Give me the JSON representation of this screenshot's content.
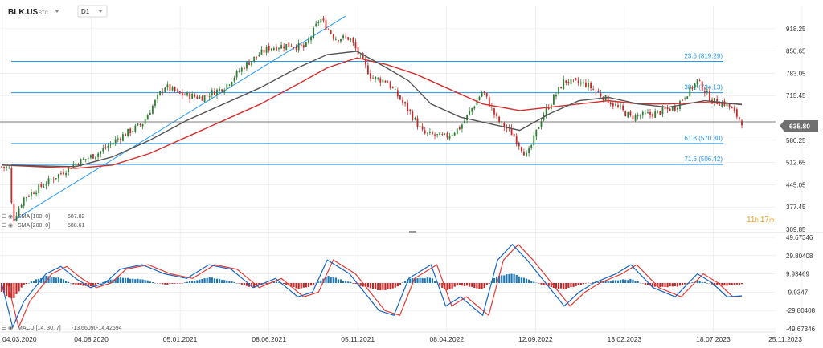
{
  "header": {
    "symbol": "BLK.US",
    "subtitle": "STC",
    "interval": "D1"
  },
  "colors": {
    "up": "#2e7d32",
    "down": "#c62828",
    "sma100": "#555555",
    "sma200": "#d32f2f",
    "fib": "#2196f3",
    "trend": "#2196f3",
    "macd_pos": "#1f77b4",
    "macd_neg": "#c62828",
    "macd_line": "#1565c0",
    "signal_line": "#e53935",
    "price_line": "#555555",
    "price_badge": "#707070",
    "countdown": "#f0a020",
    "grid": "#e6e6e6"
  },
  "countdown": {
    "hours": "11",
    "h": "h",
    "minutes": "17",
    "m": "m"
  },
  "chart_data": [
    {
      "type": "candlestick",
      "title": "BLK.US",
      "interval": "D1",
      "xlabel": "",
      "ylabel": "",
      "ylim": [
        309.85,
        986.05
      ],
      "yticks": [
        "918.25",
        "850.65",
        "783.05",
        "715.45",
        "580.25",
        "512.65",
        "445.05",
        "377.45",
        "309.85"
      ],
      "xticks": [
        "04.03.2020",
        "04.08.2020",
        "05.01.2021",
        "08.06.2021",
        "05.11.2021",
        "08.04.2022",
        "12.09.2022",
        "13.02.2023",
        "18.07.2023",
        "25.11.2023"
      ],
      "current_price": {
        "label": "635.80",
        "value": 635.8
      },
      "price_path": [
        [
          0.0,
          500
        ],
        [
          0.01,
          495
        ],
        [
          0.015,
          335
        ],
        [
          0.03,
          405
        ],
        [
          0.06,
          450
        ],
        [
          0.1,
          510
        ],
        [
          0.13,
          540
        ],
        [
          0.16,
          590
        ],
        [
          0.19,
          630
        ],
        [
          0.22,
          745
        ],
        [
          0.24,
          720
        ],
        [
          0.27,
          710
        ],
        [
          0.3,
          740
        ],
        [
          0.33,
          810
        ],
        [
          0.36,
          860
        ],
        [
          0.39,
          870
        ],
        [
          0.41,
          860
        ],
        [
          0.43,
          950
        ],
        [
          0.45,
          890
        ],
        [
          0.47,
          890
        ],
        [
          0.5,
          770
        ],
        [
          0.52,
          760
        ],
        [
          0.55,
          670
        ],
        [
          0.57,
          600
        ],
        [
          0.6,
          590
        ],
        [
          0.62,
          620
        ],
        [
          0.65,
          730
        ],
        [
          0.67,
          640
        ],
        [
          0.69,
          600
        ],
        [
          0.71,
          530
        ],
        [
          0.73,
          650
        ],
        [
          0.76,
          760
        ],
        [
          0.79,
          750
        ],
        [
          0.82,
          700
        ],
        [
          0.85,
          650
        ],
        [
          0.88,
          660
        ],
        [
          0.91,
          680
        ],
        [
          0.94,
          760
        ],
        [
          0.96,
          700
        ],
        [
          0.98,
          690
        ],
        [
          1.0,
          635.8
        ]
      ],
      "sma": [
        {
          "name": "SMA [100, 0]",
          "value": "687.82",
          "points": [
            [
              0.0,
              505
            ],
            [
              0.1,
              500
            ],
            [
              0.15,
              530
            ],
            [
              0.2,
              580
            ],
            [
              0.25,
              640
            ],
            [
              0.3,
              690
            ],
            [
              0.35,
              740
            ],
            [
              0.4,
              800
            ],
            [
              0.44,
              840
            ],
            [
              0.48,
              850
            ],
            [
              0.52,
              800
            ],
            [
              0.55,
              760
            ],
            [
              0.58,
              690
            ],
            [
              0.62,
              650
            ],
            [
              0.66,
              630
            ],
            [
              0.7,
              610
            ],
            [
              0.74,
              660
            ],
            [
              0.78,
              700
            ],
            [
              0.82,
              710
            ],
            [
              0.86,
              690
            ],
            [
              0.9,
              680
            ],
            [
              0.95,
              700
            ],
            [
              1.0,
              688
            ]
          ]
        },
        {
          "name": "SMA [200, 0]",
          "value": "688.61",
          "points": [
            [
              0.0,
              505
            ],
            [
              0.1,
              495
            ],
            [
              0.15,
              505
            ],
            [
              0.2,
              540
            ],
            [
              0.25,
              590
            ],
            [
              0.3,
              640
            ],
            [
              0.35,
              690
            ],
            [
              0.4,
              750
            ],
            [
              0.44,
              800
            ],
            [
              0.48,
              830
            ],
            [
              0.52,
              810
            ],
            [
              0.56,
              780
            ],
            [
              0.6,
              740
            ],
            [
              0.65,
              690
            ],
            [
              0.7,
              670
            ],
            [
              0.74,
              680
            ],
            [
              0.78,
              690
            ],
            [
              0.82,
              700
            ],
            [
              0.86,
              690
            ],
            [
              0.9,
              690
            ],
            [
              0.95,
              695
            ],
            [
              1.0,
              689
            ]
          ]
        }
      ],
      "fibonacci": [
        {
          "label": "23.6 (819.29)",
          "value": 819.29
        },
        {
          "label": "38.2 (724.13)",
          "value": 724.13
        },
        {
          "label": "61.8 (570.30)",
          "value": 570.3
        },
        {
          "label": "71.6 (506.42)",
          "value": 506.42
        }
      ],
      "trendline": {
        "from": [
          0.015,
          335
        ],
        "to": [
          0.465,
          957
        ]
      }
    },
    {
      "type": "histogram",
      "title": "MACD [14, 30, 7]",
      "ylim": [
        -49.67346,
        49.67346
      ],
      "yticks": [
        "49.67346",
        "29.80408",
        "9.93469",
        "-9.9347",
        "-29.80408",
        "-49.67346"
      ],
      "macd_value": "-13.66090",
      "signal_value": "-14.42594",
      "macd_line": [
        [
          0.0,
          0
        ],
        [
          0.015,
          -48
        ],
        [
          0.03,
          -20
        ],
        [
          0.06,
          10
        ],
        [
          0.08,
          18
        ],
        [
          0.1,
          5
        ],
        [
          0.12,
          -5
        ],
        [
          0.14,
          0
        ],
        [
          0.16,
          15
        ],
        [
          0.19,
          20
        ],
        [
          0.22,
          10
        ],
        [
          0.25,
          5
        ],
        [
          0.28,
          20
        ],
        [
          0.31,
          15
        ],
        [
          0.34,
          -5
        ],
        [
          0.37,
          5
        ],
        [
          0.4,
          -15
        ],
        [
          0.42,
          -10
        ],
        [
          0.44,
          25
        ],
        [
          0.47,
          10
        ],
        [
          0.49,
          -10
        ],
        [
          0.51,
          -30
        ],
        [
          0.53,
          -35
        ],
        [
          0.55,
          5
        ],
        [
          0.58,
          20
        ],
        [
          0.6,
          -25
        ],
        [
          0.62,
          -15
        ],
        [
          0.65,
          -35
        ],
        [
          0.67,
          25
        ],
        [
          0.69,
          42
        ],
        [
          0.71,
          25
        ],
        [
          0.73,
          5
        ],
        [
          0.76,
          -25
        ],
        [
          0.78,
          -10
        ],
        [
          0.8,
          0
        ],
        [
          0.83,
          10
        ],
        [
          0.85,
          20
        ],
        [
          0.88,
          -5
        ],
        [
          0.91,
          -15
        ],
        [
          0.94,
          10
        ],
        [
          0.96,
          0
        ],
        [
          0.98,
          -15
        ],
        [
          1.0,
          -14
        ]
      ],
      "histogram": [
        [
          0.0,
          -10
        ],
        [
          0.015,
          -18
        ],
        [
          0.03,
          -2
        ],
        [
          0.06,
          8
        ],
        [
          0.08,
          5
        ],
        [
          0.1,
          -2
        ],
        [
          0.12,
          -4
        ],
        [
          0.14,
          2
        ],
        [
          0.16,
          6
        ],
        [
          0.19,
          4
        ],
        [
          0.22,
          -2
        ],
        [
          0.25,
          1
        ],
        [
          0.28,
          6
        ],
        [
          0.31,
          2
        ],
        [
          0.34,
          -5
        ],
        [
          0.37,
          2
        ],
        [
          0.4,
          -6
        ],
        [
          0.42,
          -3
        ],
        [
          0.44,
          8
        ],
        [
          0.47,
          1
        ],
        [
          0.49,
          -4
        ],
        [
          0.51,
          -8
        ],
        [
          0.53,
          -6
        ],
        [
          0.55,
          5
        ],
        [
          0.58,
          6
        ],
        [
          0.6,
          -8
        ],
        [
          0.62,
          -2
        ],
        [
          0.65,
          -7
        ],
        [
          0.67,
          8
        ],
        [
          0.69,
          10
        ],
        [
          0.71,
          4
        ],
        [
          0.73,
          -2
        ],
        [
          0.76,
          -7
        ],
        [
          0.78,
          -2
        ],
        [
          0.8,
          1
        ],
        [
          0.83,
          3
        ],
        [
          0.85,
          4
        ],
        [
          0.88,
          -4
        ],
        [
          0.91,
          -4
        ],
        [
          0.94,
          2
        ],
        [
          0.96,
          -1
        ],
        [
          0.98,
          -3
        ],
        [
          1.0,
          -1
        ]
      ]
    }
  ]
}
